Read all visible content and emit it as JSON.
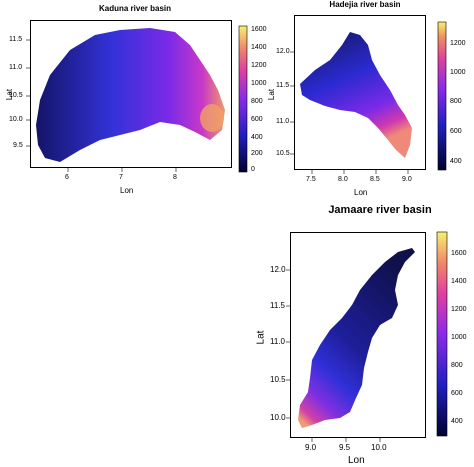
{
  "colors": {
    "low": "#0a0a50",
    "mid1": "#2a2ad8",
    "mid2": "#8a2ae8",
    "mid3": "#e0409a",
    "high": "#f0a060",
    "top": "#f8f060"
  },
  "panels": [
    {
      "title": "Kaduna river basin",
      "xlabel": "Lon",
      "ylabel": "Lat",
      "xticks": [
        "6",
        "7",
        "8"
      ],
      "yticks": [
        "11.5",
        "11.0",
        "10.5",
        "10.0",
        "9.5"
      ],
      "cbar_ticks": [
        "1600",
        "1400",
        "1200",
        "1000",
        "800",
        "600",
        "400",
        "200",
        "0"
      ]
    },
    {
      "title": "Hadejia river basin",
      "xlabel": "Lon",
      "ylabel": "Lat",
      "xticks": [
        "7.5",
        "8.0",
        "8.5",
        "9.0"
      ],
      "yticks": [
        "12.0",
        "11.5",
        "11.0",
        "10.5"
      ],
      "cbar_ticks": [
        "1200",
        "1000",
        "800",
        "600",
        "400"
      ]
    },
    {
      "title": "Jamaare river basin",
      "xlabel": "Lon",
      "ylabel": "Lat",
      "xticks": [
        "9.0",
        "9.5",
        "10.0"
      ],
      "yticks": [
        "12.0",
        "11.5",
        "11.0",
        "10.5",
        "10.0"
      ],
      "cbar_ticks": [
        "1600",
        "1400",
        "1200",
        "1000",
        "800",
        "600",
        "400"
      ]
    }
  ]
}
